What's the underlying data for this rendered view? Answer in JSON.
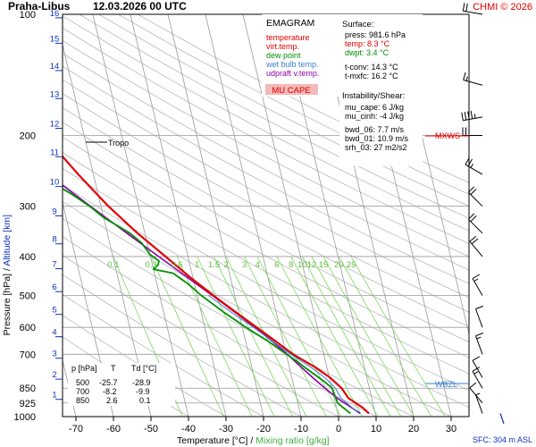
{
  "header": {
    "station": "Praha-Libus",
    "datetime": "12.03.2026 00 UTC",
    "credit": "CHMI © 2026"
  },
  "legend": {
    "title": "EMAGRAM",
    "items": [
      {
        "label": "temperature",
        "color": "#e00000"
      },
      {
        "label": "virt.temp.",
        "color": "#e00000"
      },
      {
        "label": "dew point",
        "color": "#009000"
      },
      {
        "label": "wet bulb temp.",
        "color": "#3a7fd0"
      },
      {
        "label": "udpraft v.temp.",
        "color": "#9000a8"
      }
    ],
    "badge": "MU CAPE"
  },
  "info": {
    "surface_title": "Surface:",
    "press": "press: 981.6 hPa",
    "temp": "temp: 8.3 °C",
    "dwpt": "dwpt: 3.4 °C",
    "tconv": "t-conv: 14.3 °C",
    "tmxfc": "t-mxfc: 16.2 °C",
    "instab_title": "Instability/Shear:",
    "mu_cape": "mu_cape: 6 J/kg",
    "mu_cinh": "mu_cinh: -4 J/kg",
    "bwd06": "bwd_06: 7.7 m/s",
    "bwd01": "bwd_01: 10.9 m/s",
    "srh03": "srh_03: 27 m2/s2"
  },
  "levels_table": {
    "headers": [
      "p [hPa]",
      "T",
      "Td [°C]"
    ],
    "rows": [
      [
        "500",
        "-25.7",
        "-28.9"
      ],
      [
        "700",
        "-8.2",
        "-9.9"
      ],
      [
        "850",
        "2.6",
        "0.1"
      ]
    ]
  },
  "markers": {
    "tropo": "Tropo",
    "mxws": "MXWS",
    "wbzl": "WBZL",
    "sfc": "SFC: 304 m ASL"
  },
  "colors": {
    "temperature": "#e00000",
    "dew_point": "#009000",
    "wet_bulb": "#3a7fd0",
    "updraft": "#9000a8",
    "mixing_ratio": "#7dd860",
    "altitude_label": "#1030c0",
    "grid": "#9a9a9a",
    "dry_adiabat": "#b8b8b8"
  },
  "chart_data": {
    "type": "line",
    "title": "",
    "xlabel": "Temperature [°C]",
    "xlabel_secondary": "Mixing ratio [g/kg]",
    "ylabel": "Pressure [hPa]",
    "ylabel_secondary": "Altitude [km]",
    "xlim": [
      -80,
      40
    ],
    "ylim": [
      1000,
      100
    ],
    "y_scale": "log",
    "x_ticks": [
      -70,
      -60,
      -50,
      -40,
      -30,
      -20,
      -10,
      0,
      10,
      20,
      30
    ],
    "pressure_ticks": [
      100,
      200,
      300,
      400,
      500,
      600,
      700,
      850,
      925,
      1000
    ],
    "altitude_ticks": [
      {
        "km": "1",
        "p": 906
      },
      {
        "km": "2",
        "p": 807
      },
      {
        "km": "3",
        "p": 716
      },
      {
        "km": "4",
        "p": 633
      },
      {
        "km": "5",
        "p": 557
      },
      {
        "km": "6",
        "p": 489
      },
      {
        "km": "7",
        "p": 429
      },
      {
        "km": "8",
        "p": 372
      },
      {
        "km": "9",
        "p": 317
      },
      {
        "km": "10",
        "p": 268
      },
      {
        "km": "11",
        "p": 226
      },
      {
        "km": "12",
        "p": 192
      },
      {
        "km": "13",
        "p": 162
      },
      {
        "km": "14",
        "p": 138
      },
      {
        "km": "15",
        "p": 118
      },
      {
        "km": "16",
        "p": 102
      }
    ],
    "mixing_ratio_labels": [
      "0.1",
      "0.3",
      "0.6",
      "1",
      "1.5",
      "2",
      "3",
      "4",
      "6",
      "8",
      "10",
      "12",
      "15",
      "20",
      "25"
    ],
    "series": [
      {
        "name": "temperature",
        "points": [
          [
            981.6,
            8.3
          ],
          [
            950,
            7.0
          ],
          [
            925,
            5.4
          ],
          [
            900,
            3.8
          ],
          [
            850,
            2.6
          ],
          [
            800,
            0.2
          ],
          [
            750,
            -3.4
          ],
          [
            700,
            -8.2
          ],
          [
            650,
            -12.0
          ],
          [
            600,
            -16.2
          ],
          [
            550,
            -20.8
          ],
          [
            500,
            -25.7
          ],
          [
            450,
            -30.8
          ],
          [
            400,
            -36.0
          ],
          [
            350,
            -42.0
          ],
          [
            300,
            -48.0
          ],
          [
            270,
            -51.5
          ],
          [
            250,
            -54.0
          ],
          [
            230,
            -56.5
          ],
          [
            215,
            -58.5
          ],
          [
            205,
            -60.5
          ],
          [
            198,
            -62.5
          ],
          [
            190,
            -62.0
          ],
          [
            180,
            -62.5
          ],
          [
            160,
            -61.5
          ],
          [
            145,
            -62.0
          ],
          [
            130,
            -61.5
          ],
          [
            120,
            -60.5
          ],
          [
            110,
            -59.5
          ],
          [
            100,
            -59.5
          ]
        ]
      },
      {
        "name": "dew point",
        "points": [
          [
            981.6,
            3.4
          ],
          [
            950,
            1.8
          ],
          [
            925,
            0.6
          ],
          [
            880,
            0.3
          ],
          [
            850,
            0.1
          ],
          [
            820,
            -1.5
          ],
          [
            800,
            -2.8
          ],
          [
            760,
            -5.5
          ],
          [
            730,
            -7.5
          ],
          [
            700,
            -9.9
          ],
          [
            650,
            -14.0
          ],
          [
            600,
            -19.0
          ],
          [
            550,
            -24.0
          ],
          [
            500,
            -28.9
          ],
          [
            470,
            -31.5
          ],
          [
            440,
            -35.0
          ],
          [
            430,
            -40.0
          ],
          [
            420,
            -38.5
          ],
          [
            410,
            -38.0
          ],
          [
            395,
            -40.0
          ],
          [
            370,
            -41.5
          ],
          [
            350,
            -44.0
          ],
          [
            320,
            -50.0
          ],
          [
            300,
            -53.0
          ],
          [
            280,
            -57.0
          ],
          [
            260,
            -62.0
          ],
          [
            240,
            -67.0
          ],
          [
            220,
            -73.0
          ],
          [
            205,
            -78.0
          ],
          [
            195,
            -84.0
          ],
          [
            188,
            -90.0
          ]
        ]
      },
      {
        "name": "wet bulb temp.",
        "points": [
          [
            981.6,
            5.6
          ],
          [
            950,
            4.2
          ],
          [
            925,
            3.0
          ],
          [
            900,
            1.8
          ],
          [
            850,
            1.0
          ],
          [
            800,
            -1.2
          ],
          [
            750,
            -4.5
          ],
          [
            700,
            -8.8
          ],
          [
            650,
            -12.8
          ],
          [
            600,
            -17.0
          ],
          [
            550,
            -22.0
          ],
          [
            500,
            -27.0
          ]
        ]
      },
      {
        "name": "udpraft v.temp.",
        "points": [
          [
            981.6,
            6.0
          ],
          [
            900,
            0.8
          ],
          [
            850,
            -1.8
          ],
          [
            800,
            -4.4
          ],
          [
            750,
            -7.0
          ],
          [
            700,
            -9.7
          ],
          [
            650,
            -12.9
          ],
          [
            600,
            -16.6
          ],
          [
            550,
            -21.0
          ],
          [
            500,
            -26.0
          ],
          [
            450,
            -31.6
          ],
          [
            400,
            -37.8
          ],
          [
            350,
            -44.8
          ],
          [
            300,
            -52.8
          ],
          [
            250,
            -62.0
          ],
          [
            200,
            -72.5
          ],
          [
            180,
            -77.5
          ],
          [
            170,
            -80.0
          ]
        ]
      }
    ],
    "winds": [
      {
        "p": 100,
        "dir": 280,
        "spd": 20
      },
      {
        "p": 150,
        "dir": 285,
        "spd": 15
      },
      {
        "p": 180,
        "dir": 260,
        "spd": 45
      },
      {
        "p": 200,
        "dir": 270,
        "spd": 30
      },
      {
        "p": 250,
        "dir": 300,
        "spd": 25
      },
      {
        "p": 300,
        "dir": 315,
        "spd": 20
      },
      {
        "p": 350,
        "dir": 315,
        "spd": 20
      },
      {
        "p": 400,
        "dir": 320,
        "spd": 20
      },
      {
        "p": 500,
        "dir": 330,
        "spd": 15
      },
      {
        "p": 600,
        "dir": 340,
        "spd": 10
      },
      {
        "p": 700,
        "dir": 340,
        "spd": 15
      },
      {
        "p": 800,
        "dir": 330,
        "spd": 10
      },
      {
        "p": 850,
        "dir": 330,
        "spd": 15
      },
      {
        "p": 925,
        "dir": 320,
        "spd": 10
      },
      {
        "p": 981.6,
        "dir": 340,
        "spd": 5
      }
    ]
  }
}
